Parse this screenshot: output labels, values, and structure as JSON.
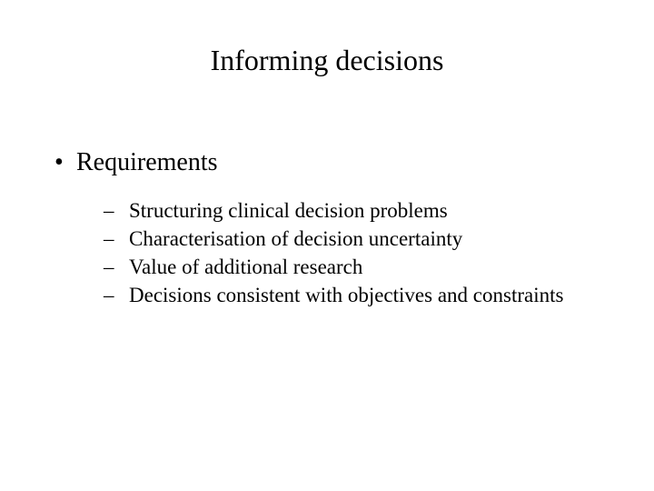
{
  "slide": {
    "title": "Informing decisions",
    "title_fontsize": 32,
    "title_color": "#000000",
    "background_color": "#ffffff",
    "font_family": "Times New Roman",
    "bullets": [
      {
        "marker": "•",
        "text": "Requirements",
        "fontsize": 28,
        "sub": [
          {
            "marker": "–",
            "text": "Structuring clinical decision problems",
            "fontsize": 23
          },
          {
            "marker": "–",
            "text": "Characterisation of decision uncertainty",
            "fontsize": 23
          },
          {
            "marker": "–",
            "text": "Value of additional research",
            "fontsize": 23
          },
          {
            "marker": "–",
            "text": "Decisions consistent with objectives and constraints",
            "fontsize": 23
          }
        ]
      }
    ]
  }
}
